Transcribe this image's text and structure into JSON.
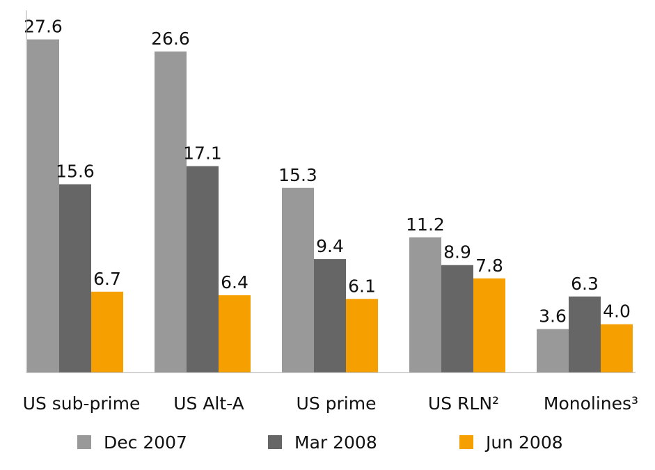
{
  "chart_data": {
    "type": "bar",
    "categories": [
      "US sub-prime",
      "US Alt-A",
      "US prime",
      "US RLN²",
      "Monolines³"
    ],
    "series": [
      {
        "name": "Dec 2007",
        "color": "#999999",
        "values": [
          27.6,
          26.6,
          15.3,
          11.2,
          3.6
        ]
      },
      {
        "name": "Mar 2008",
        "color": "#666666",
        "values": [
          15.6,
          17.1,
          9.4,
          8.9,
          6.3
        ]
      },
      {
        "name": "Jun 2008",
        "color": "#f5a000",
        "values": [
          6.7,
          6.4,
          6.1,
          7.8,
          4.0
        ],
        "value_labels": [
          "6.7",
          "6.4",
          "6.1",
          "7.8",
          "4.0"
        ]
      }
    ],
    "ylim": [
      0,
      30
    ],
    "legend": "bottom"
  }
}
